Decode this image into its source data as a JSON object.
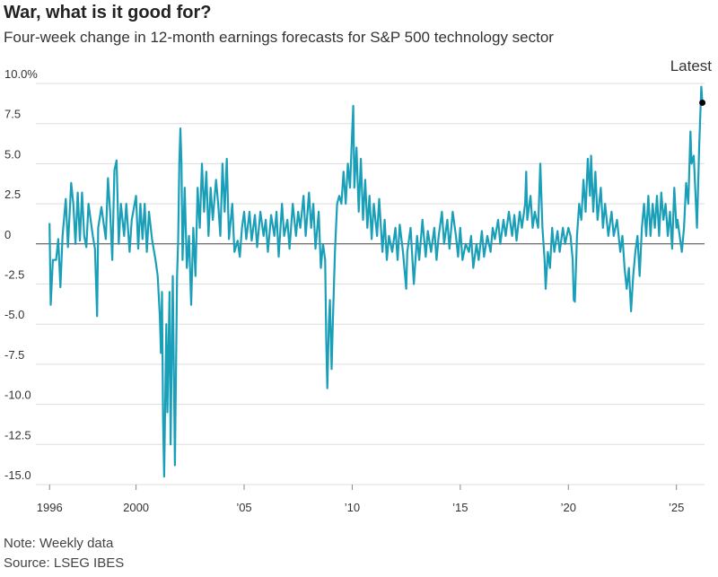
{
  "chart_data": {
    "type": "line",
    "title": "War, what is it good for?",
    "subtitle": "Four-week change in 12-month earnings forecasts for S&P 500 technology sector",
    "annotation": "Latest",
    "note": "Note: Weekly data",
    "source": "Source: LSEG IBES",
    "color": "#1a9fb8",
    "grid": true,
    "xlim": [
      1995.45,
      2026.3
    ],
    "ylim": [
      -15,
      10
    ],
    "xticks": [
      1996,
      2000,
      {
        "value": 2005,
        "label": "’05"
      },
      {
        "value": 2010,
        "label": "’10"
      },
      {
        "value": 2015,
        "label": "’15"
      },
      {
        "value": 2020,
        "label": "’20"
      },
      {
        "value": 2025,
        "label": "’25"
      }
    ],
    "yticks": [
      {
        "value": 10,
        "label": "10.0%"
      },
      7.5,
      {
        "value": 5,
        "label": "5.0"
      },
      2.5,
      0,
      -2.5,
      {
        "value": -5,
        "label": "-5.0"
      },
      -7.5,
      {
        "value": -10,
        "label": "-10.0"
      },
      -12.5,
      {
        "value": -15,
        "label": "-15.0"
      }
    ],
    "x": [
      1996.0,
      1996.05,
      1996.15,
      1996.3,
      1996.4,
      1996.5,
      1996.6,
      1996.75,
      1996.85,
      1997.0,
      1997.1,
      1997.2,
      1997.3,
      1997.4,
      1997.5,
      1997.6,
      1997.7,
      1997.8,
      1998.0,
      1998.1,
      1998.2,
      1998.25,
      1998.4,
      1998.6,
      1998.7,
      1998.8,
      1998.9,
      1999.0,
      1999.1,
      1999.2,
      1999.3,
      1999.45,
      1999.55,
      1999.7,
      1999.8,
      2000.0,
      2000.1,
      2000.2,
      2000.3,
      2000.4,
      2000.5,
      2000.6,
      2000.75,
      2000.9,
      2001.0,
      2001.1,
      2001.15,
      2001.2,
      2001.25,
      2001.3,
      2001.4,
      2001.45,
      2001.55,
      2001.6,
      2001.7,
      2001.8,
      2001.9,
      2001.95,
      2002.0,
      2002.05,
      2002.1,
      2002.15,
      2002.25,
      2002.35,
      2002.45,
      2002.55,
      2002.65,
      2002.75,
      2002.85,
      2002.95,
      2003.05,
      2003.15,
      2003.25,
      2003.35,
      2003.45,
      2003.55,
      2003.7,
      2003.8,
      2003.9,
      2004.0,
      2004.1,
      2004.2,
      2004.3,
      2004.45,
      2004.55,
      2004.7,
      2004.8,
      2004.9,
      2005.0,
      2005.1,
      2005.25,
      2005.35,
      2005.5,
      2005.6,
      2005.75,
      2005.9,
      2006.0,
      2006.1,
      2006.25,
      2006.4,
      2006.5,
      2006.6,
      2006.75,
      2006.85,
      2007.0,
      2007.1,
      2007.25,
      2007.4,
      2007.5,
      2007.6,
      2007.75,
      2007.85,
      2008.0,
      2008.1,
      2008.2,
      2008.3,
      2008.45,
      2008.55,
      2008.65,
      2008.75,
      2008.8,
      2008.85,
      2008.92,
      2008.97,
      2009.05,
      2009.1,
      2009.2,
      2009.3,
      2009.4,
      2009.5,
      2009.6,
      2009.7,
      2009.8,
      2009.9,
      2010.0,
      2010.05,
      2010.1,
      2010.2,
      2010.3,
      2010.4,
      2010.5,
      2010.6,
      2010.7,
      2010.8,
      2010.9,
      2011.0,
      2011.15,
      2011.25,
      2011.4,
      2011.5,
      2011.6,
      2011.7,
      2011.85,
      2012.0,
      2012.1,
      2012.2,
      2012.35,
      2012.5,
      2012.55,
      2012.7,
      2012.85,
      2013.0,
      2013.1,
      2013.25,
      2013.4,
      2013.5,
      2013.65,
      2013.8,
      2013.9,
      2014.0,
      2014.15,
      2014.25,
      2014.4,
      2014.5,
      2014.65,
      2014.8,
      2014.9,
      2015.0,
      2015.1,
      2015.25,
      2015.4,
      2015.5,
      2015.6,
      2015.75,
      2015.85,
      2016.0,
      2016.1,
      2016.25,
      2016.4,
      2016.5,
      2016.6,
      2016.75,
      2016.85,
      2017.0,
      2017.1,
      2017.25,
      2017.4,
      2017.5,
      2017.6,
      2017.75,
      2017.85,
      2018.0,
      2018.05,
      2018.1,
      2018.25,
      2018.35,
      2018.45,
      2018.6,
      2018.7,
      2018.8,
      2018.9,
      2018.95,
      2019.05,
      2019.15,
      2019.25,
      2019.35,
      2019.5,
      2019.6,
      2019.75,
      2019.85,
      2020.0,
      2020.1,
      2020.2,
      2020.25,
      2020.3,
      2020.4,
      2020.5,
      2020.6,
      2020.7,
      2020.8,
      2020.9,
      2021.0,
      2021.05,
      2021.15,
      2021.25,
      2021.35,
      2021.5,
      2021.6,
      2021.7,
      2021.85,
      2022.0,
      2022.1,
      2022.25,
      2022.4,
      2022.5,
      2022.6,
      2022.7,
      2022.8,
      2022.9,
      2023.0,
      2023.1,
      2023.2,
      2023.3,
      2023.4,
      2023.5,
      2023.6,
      2023.7,
      2023.8,
      2023.9,
      2024.0,
      2024.1,
      2024.2,
      2024.3,
      2024.4,
      2024.5,
      2024.6,
      2024.7,
      2024.8,
      2024.9,
      2025.0,
      2025.05,
      2025.15,
      2025.25,
      2025.35,
      2025.45,
      2025.55,
      2025.65,
      2025.7,
      2025.8,
      2025.85,
      2025.95,
      2026.05,
      2026.15,
      2026.2
    ],
    "values": [
      1.3,
      -3.8,
      -1.0,
      -1.0,
      0.3,
      -2.7,
      0.5,
      2.8,
      -0.2,
      3.8,
      2.5,
      0,
      3.2,
      0.2,
      3.2,
      0.5,
      -0.2,
      2.5,
      0.5,
      -0.3,
      -4.5,
      1.0,
      2.3,
      0.3,
      4.1,
      2.0,
      -1.0,
      4.6,
      5.2,
      0,
      2.5,
      0.5,
      2.5,
      -0.5,
      1.5,
      3.0,
      -0.3,
      2.5,
      0.3,
      2.5,
      -0.5,
      2.0,
      0.2,
      -1.0,
      -2.0,
      -4.5,
      -6.8,
      -3.0,
      -11.0,
      -14.5,
      -5.0,
      -10.5,
      -3.0,
      -12.5,
      -2.0,
      -13.8,
      -2.0,
      0.2,
      5.0,
      7.2,
      5.0,
      -1.0,
      3.5,
      -1.5,
      0.5,
      -3.8,
      1.0,
      -2.0,
      3.5,
      1.0,
      5.0,
      2.0,
      4.5,
      0.5,
      3.5,
      1.5,
      4.0,
      2.5,
      0.5,
      5.0,
      2.0,
      5.3,
      0.3,
      2.5,
      -0.5,
      0.2,
      -0.8,
      1.0,
      2.0,
      0.3,
      2.0,
      0.2,
      1.8,
      -0.2,
      2.0,
      0.5,
      1.5,
      -0.5,
      1.8,
      0.5,
      2.0,
      -0.8,
      2.5,
      0.5,
      1.5,
      -0.3,
      2.5,
      0.5,
      2.0,
      1.0,
      3.0,
      0.5,
      3.2,
      1.0,
      2.5,
      -0.3,
      2.0,
      -1.5,
      0,
      -1.0,
      -6.0,
      -9.0,
      -5.0,
      -3.5,
      -7.8,
      -5.0,
      -0.5,
      2.5,
      3.0,
      2.5,
      4.5,
      2.5,
      5.0,
      3.5,
      7.0,
      8.6,
      3.5,
      6.0,
      2.0,
      5.3,
      1.5,
      4.0,
      1.0,
      3.0,
      0.3,
      2.5,
      0.5,
      2.8,
      -0.5,
      1.5,
      -1.0,
      0.5,
      -0.5,
      1.0,
      -1.0,
      1.2,
      -0.5,
      -2.8,
      -0.5,
      1.0,
      -2.5,
      0.5,
      -1.0,
      1.5,
      -0.8,
      0.8,
      -0.5,
      1.0,
      -1.0,
      0.5,
      2.0,
      0,
      1.5,
      -0.3,
      2.0,
      0.5,
      -0.8,
      1.0,
      -1.0,
      0,
      -0.5,
      0.5,
      -1.5,
      0,
      -1.0,
      0.8,
      -0.8,
      0.5,
      -0.5,
      1.0,
      0.3,
      1.5,
      0,
      1.5,
      0.5,
      2.0,
      0.5,
      1.8,
      0.2,
      2.0,
      1.0,
      2.5,
      4.5,
      1.5,
      3.0,
      1.0,
      2.0,
      1.0,
      5.0,
      1.0,
      -1.0,
      -2.8,
      -0.5,
      -1.5,
      1.0,
      -0.5,
      0.8,
      -0.5,
      1.0,
      0,
      1.0,
      0.5,
      -1.0,
      -3.5,
      -3.6,
      0.5,
      2.5,
      1.5,
      4.0,
      2.0,
      5.3,
      3.0,
      5.5,
      2.0,
      4.5,
      1.5,
      3.5,
      1.0,
      2.5,
      0.5,
      2.0,
      0.5,
      1.5,
      -0.5,
      0.5,
      -1.5,
      -2.8,
      -1.5,
      -4.2,
      -2.0,
      -0.5,
      0.5,
      -2.0,
      1.0,
      2.5,
      0.5,
      3.0,
      0.5,
      2.5,
      1.0,
      3.0,
      0.5,
      3.2,
      1.5,
      2.5,
      0.5,
      2.0,
      -0.3,
      3.5,
      1.0,
      1.5,
      0.5,
      -0.5,
      1.0,
      3.8,
      2.5,
      7.0,
      5.0,
      5.5,
      4.0,
      1.0,
      6.0,
      9.8,
      8.8
    ]
  }
}
